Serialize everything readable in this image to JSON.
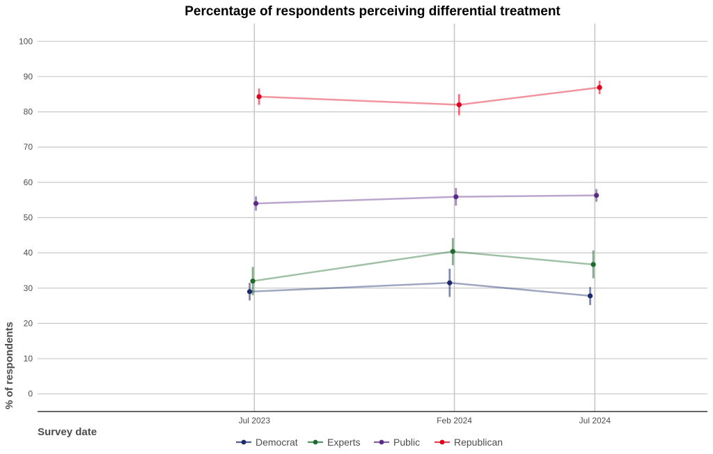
{
  "chart_data": {
    "type": "line",
    "title": "Percentage of respondents perceiving differential treatment",
    "xlabel": "Survey date",
    "ylabel": "% of respondents",
    "x": [
      "Jul 2023",
      "Feb 2024",
      "Jul 2024"
    ],
    "x_dates": [
      "2023-07-01",
      "2024-02-01",
      "2024-07-01"
    ],
    "x_range": [
      "2022-11-10",
      "2024-10-30"
    ],
    "ylim": [
      -5,
      105
    ],
    "yticks": [
      0,
      10,
      20,
      30,
      40,
      50,
      60,
      70,
      80,
      90,
      100
    ],
    "grid": true,
    "legend_position": "bottom",
    "series": [
      {
        "name": "Democrat",
        "color": "#1a2a6c",
        "values": [
          29.0,
          31.5,
          27.8
        ],
        "error_low": [
          26.5,
          27.5,
          25.2
        ],
        "error_high": [
          31.5,
          35.5,
          30.3
        ]
      },
      {
        "name": "Experts",
        "color": "#1f6b2e",
        "values": [
          32.0,
          40.4,
          36.7
        ],
        "error_low": [
          28.0,
          36.5,
          32.8
        ],
        "error_high": [
          36.0,
          44.2,
          40.7
        ]
      },
      {
        "name": "Public",
        "color": "#5b2a86",
        "values": [
          54.0,
          55.9,
          56.3
        ],
        "error_low": [
          52.0,
          53.4,
          54.5
        ],
        "error_high": [
          56.0,
          58.4,
          58.1
        ]
      },
      {
        "name": "Republican",
        "color": "#e0001b",
        "values": [
          84.3,
          82.0,
          86.9
        ],
        "error_low": [
          82.0,
          79.0,
          85.0
        ],
        "error_high": [
          86.6,
          85.0,
          88.8
        ]
      }
    ]
  }
}
